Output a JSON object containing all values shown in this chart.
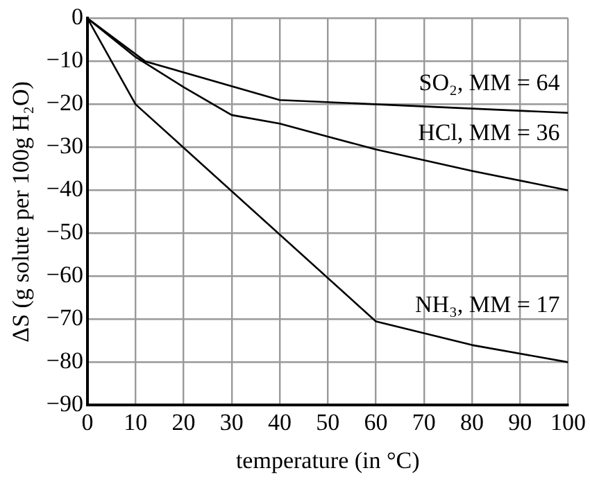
{
  "chart_data": {
    "type": "line",
    "xlabel": "temperature (in °C)",
    "ylabel": "ΔS (g solute per 100g H₂O)",
    "xlim": [
      0,
      100
    ],
    "xticks": [
      0,
      10,
      20,
      30,
      40,
      50,
      60,
      70,
      80,
      90,
      100
    ],
    "ylim": [
      -90,
      0
    ],
    "yticks": [
      -90,
      -80,
      -70,
      -60,
      -50,
      -40,
      -30,
      -20,
      -10,
      0
    ],
    "grid": true,
    "legend": false,
    "marker": "none",
    "line_style": "solid",
    "series": [
      {
        "name": "SO₂, MM = 64",
        "color": "#000000",
        "x": [
          0,
          12,
          40,
          100
        ],
        "values": [
          0,
          -10,
          -19,
          -22
        ]
      },
      {
        "name": "HCl, MM = 36",
        "color": "#000000",
        "x": [
          0,
          10,
          20,
          30,
          40,
          50,
          60,
          70,
          80,
          100
        ],
        "values": [
          0,
          -9,
          -16,
          -22.5,
          -24.5,
          -27.5,
          -30.5,
          -33,
          -35.5,
          -40
        ]
      },
      {
        "name": "NH₃, MM = 17",
        "color": "#000000",
        "x": [
          0,
          10,
          60,
          80,
          100
        ],
        "values": [
          0,
          -20,
          -70.5,
          -76,
          -80
        ]
      }
    ]
  }
}
